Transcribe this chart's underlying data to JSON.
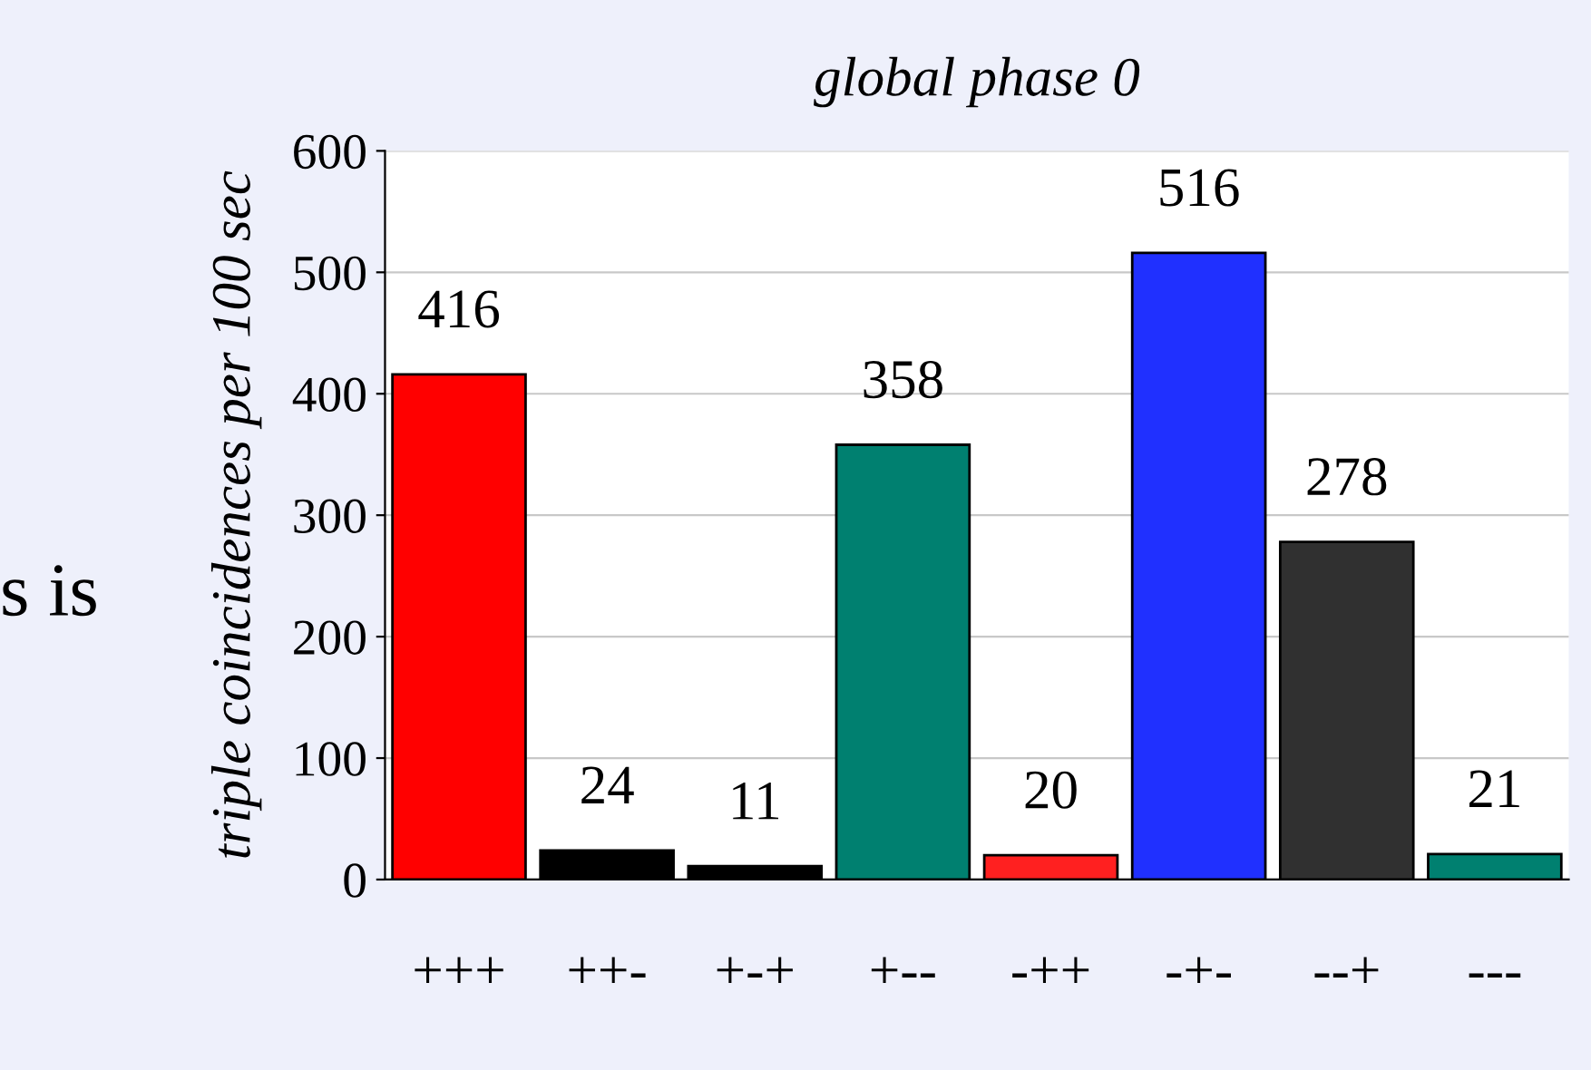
{
  "chart_data": {
    "type": "bar",
    "title": "global phase 0",
    "ylabel": "triple coincidences per 100 sec",
    "categories": [
      "+++",
      "++-",
      "+-+",
      "+--",
      "-++",
      "-+-",
      "--+",
      "---"
    ],
    "values": [
      416,
      24,
      11,
      358,
      20,
      516,
      278,
      21
    ],
    "colors": [
      "#ff0000",
      "#000000",
      "#000000",
      "#008070",
      "#ff2020",
      "#2030ff",
      "#303030",
      "#008070"
    ],
    "ylim": [
      0,
      600
    ],
    "yticks": [
      0,
      100,
      200,
      300,
      400,
      500,
      600
    ],
    "grid": "y",
    "data_labels": true,
    "legend": false,
    "annotations": [
      "s is"
    ]
  }
}
